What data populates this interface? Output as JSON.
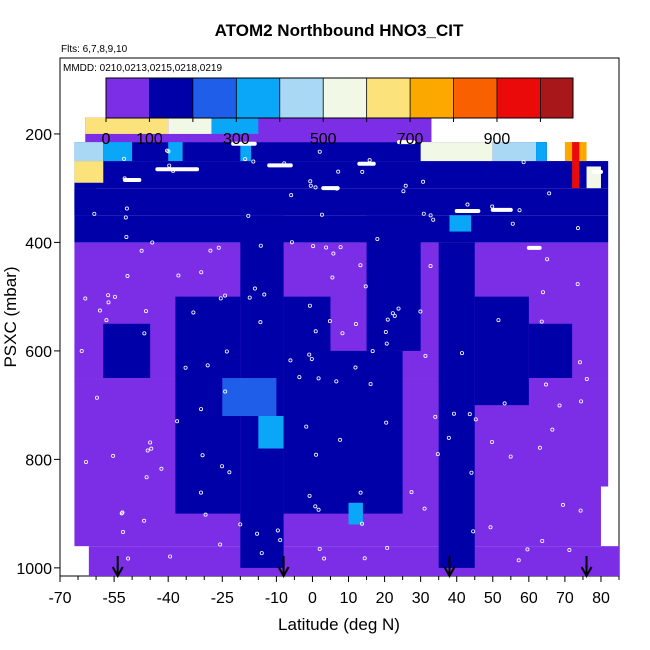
{
  "header": {
    "flights": "Flts: 6,7,8,9,10",
    "dates": "MMDD: 0210,0213,0215,0218,0219"
  },
  "colorbar": {
    "ticks": [
      {
        "label": "0",
        "value": 0
      },
      {
        "label": "100",
        "value": 100
      },
      {
        "label": "300",
        "value": 300
      },
      {
        "label": "500",
        "value": 500
      },
      {
        "label": "700",
        "value": 700
      },
      {
        "label": "900",
        "value": 900
      }
    ],
    "range": [
      0,
      1075
    ],
    "segments": [
      {
        "from": 0,
        "to": 100,
        "color": "#7b2ee6"
      },
      {
        "from": 100,
        "to": 200,
        "color": "#0000a8"
      },
      {
        "from": 200,
        "to": 300,
        "color": "#1f5ee8"
      },
      {
        "from": 300,
        "to": 400,
        "color": "#0aa6f8"
      },
      {
        "from": 400,
        "to": 500,
        "color": "#a8d8f4"
      },
      {
        "from": 500,
        "to": 600,
        "color": "#f2f8e6"
      },
      {
        "from": 600,
        "to": 700,
        "color": "#fbe27a"
      },
      {
        "from": 700,
        "to": 800,
        "color": "#fba800"
      },
      {
        "from": 800,
        "to": 900,
        "color": "#f86000"
      },
      {
        "from": 900,
        "to": 1000,
        "color": "#ea0a0a"
      },
      {
        "from": 1000,
        "to": 1075,
        "color": "#a8181a"
      }
    ]
  },
  "chart_data": {
    "type": "heatmap",
    "title": "ATOM2 Northbound HNO3_CIT",
    "xlabel": "Latitude (deg N)",
    "ylabel": "PSXC (mbar)",
    "xlim": [
      -70,
      85
    ],
    "ylim": [
      1015,
      60
    ],
    "x_ticks": [
      {
        "label": "-70",
        "value": -70
      },
      {
        "label": "-55",
        "value": -55
      },
      {
        "label": "-40",
        "value": -40
      },
      {
        "label": "-25",
        "value": -25
      },
      {
        "label": "-10",
        "value": -10
      },
      {
        "label": "0",
        "value": 0
      },
      {
        "label": "10",
        "value": 10
      },
      {
        "label": "20",
        "value": 20
      },
      {
        "label": "30",
        "value": 30
      },
      {
        "label": "40",
        "value": 40
      },
      {
        "label": "50",
        "value": 50
      },
      {
        "label": "60",
        "value": 60
      },
      {
        "label": "70",
        "value": 70
      },
      {
        "label": "80",
        "value": 80
      }
    ],
    "y_ticks": [
      {
        "label": "200",
        "value": 200
      },
      {
        "label": "400",
        "value": 400
      },
      {
        "label": "600",
        "value": 600
      },
      {
        "label": "800",
        "value": 800
      },
      {
        "label": "1000",
        "value": 1000
      }
    ],
    "x_minor_ticks": [
      -65,
      -60,
      -50,
      -45,
      -35,
      -30,
      -20,
      -15,
      -5,
      5,
      15,
      25,
      35,
      45,
      55,
      65,
      75,
      85
    ],
    "arrows_latitude": [
      -54,
      -8,
      38,
      76
    ],
    "value_units": "HNO3",
    "cells": [
      {
        "x0": -62,
        "x1": 85,
        "p0": 960,
        "p1": 1015,
        "v": 70
      },
      {
        "x0": -66,
        "x1": 80,
        "p0": 850,
        "p1": 960,
        "v": 75
      },
      {
        "x0": -66,
        "x1": 82,
        "p0": 650,
        "p1": 850,
        "v": 80
      },
      {
        "x0": -66,
        "x1": 82,
        "p0": 400,
        "p1": 650,
        "v": 85
      },
      {
        "x0": -66,
        "x1": 82,
        "p0": 350,
        "p1": 400,
        "v": 120
      },
      {
        "x0": -66,
        "x1": 82,
        "p0": 300,
        "p1": 350,
        "v": 140
      },
      {
        "x0": -66,
        "x1": 82,
        "p0": 250,
        "p1": 300,
        "v": 110
      },
      {
        "x0": -66,
        "x1": 65,
        "p0": 215,
        "p1": 250,
        "v": 120
      },
      {
        "x0": -63,
        "x1": 33,
        "p0": 170,
        "p1": 215,
        "v": 80
      },
      {
        "x0": -38,
        "x1": -20,
        "p0": 500,
        "p1": 900,
        "v": 160
      },
      {
        "x0": -20,
        "x1": -8,
        "p0": 350,
        "p1": 1000,
        "v": 170
      },
      {
        "x0": -25,
        "x1": -10,
        "p0": 650,
        "p1": 720,
        "v": 260
      },
      {
        "x0": -15,
        "x1": -8,
        "p0": 720,
        "p1": 780,
        "v": 340
      },
      {
        "x0": -8,
        "x1": 5,
        "p0": 500,
        "p1": 900,
        "v": 150
      },
      {
        "x0": 5,
        "x1": 25,
        "p0": 600,
        "p1": 900,
        "v": 120
      },
      {
        "x0": 15,
        "x1": 30,
        "p0": 350,
        "p1": 600,
        "v": 130
      },
      {
        "x0": 10,
        "x1": 14,
        "p0": 880,
        "p1": 920,
        "v": 330
      },
      {
        "x0": 35,
        "x1": 45,
        "p0": 400,
        "p1": 1000,
        "v": 140
      },
      {
        "x0": 45,
        "x1": 60,
        "p0": 500,
        "p1": 700,
        "v": 130
      },
      {
        "x0": 60,
        "x1": 72,
        "p0": 550,
        "p1": 650,
        "v": 120
      },
      {
        "x0": -58,
        "x1": -45,
        "p0": 550,
        "p1": 650,
        "v": 130
      },
      {
        "x0": -63,
        "x1": -40,
        "p0": 170,
        "p1": 200,
        "v": 620
      },
      {
        "x0": -40,
        "x1": -28,
        "p0": 170,
        "p1": 200,
        "v": 540
      },
      {
        "x0": -28,
        "x1": -15,
        "p0": 170,
        "p1": 200,
        "v": 300
      },
      {
        "x0": -66,
        "x1": -58,
        "p0": 215,
        "p1": 250,
        "v": 420
      },
      {
        "x0": -58,
        "x1": -50,
        "p0": 215,
        "p1": 250,
        "v": 330
      },
      {
        "x0": -66,
        "x1": -58,
        "p0": 250,
        "p1": 290,
        "v": 640
      },
      {
        "x0": 30,
        "x1": 50,
        "p0": 215,
        "p1": 250,
        "v": 520
      },
      {
        "x0": 50,
        "x1": 62,
        "p0": 215,
        "p1": 250,
        "v": 420
      },
      {
        "x0": 62,
        "x1": 65,
        "p0": 215,
        "p1": 250,
        "v": 320
      },
      {
        "x0": 70,
        "x1": 76,
        "p0": 215,
        "p1": 250,
        "v": 760
      },
      {
        "x0": 72,
        "x1": 74,
        "p0": 215,
        "p1": 300,
        "v": 920
      },
      {
        "x0": 76,
        "x1": 80,
        "p0": 260,
        "p1": 300,
        "v": 500
      },
      {
        "x0": -40,
        "x1": -36,
        "p0": 215,
        "p1": 250,
        "v": 300
      },
      {
        "x0": -20,
        "x1": -17,
        "p0": 215,
        "p1": 250,
        "v": 330
      },
      {
        "x0": 38,
        "x1": 44,
        "p0": 350,
        "p1": 380,
        "v": 330
      },
      {
        "x0": -66,
        "x1": -60,
        "p0": 300,
        "p1": 350,
        "v": 160
      }
    ],
    "traces": [
      {
        "x0": -52,
        "x1": -48,
        "p": 285
      },
      {
        "x0": -43,
        "x1": -32,
        "p": 265
      },
      {
        "x0": -22,
        "x1": -16,
        "p": 218
      },
      {
        "x0": -12,
        "x1": -6,
        "p": 258
      },
      {
        "x0": 3,
        "x1": 7,
        "p": 300
      },
      {
        "x0": 13,
        "x1": 17,
        "p": 255
      },
      {
        "x0": 24,
        "x1": 28,
        "p": 215
      },
      {
        "x0": 40,
        "x1": 46,
        "p": 342
      },
      {
        "x0": 50,
        "x1": 55,
        "p": 340
      },
      {
        "x0": 60,
        "x1": 63,
        "p": 410
      },
      {
        "x0": 78,
        "x1": 80,
        "p": 270
      }
    ]
  }
}
